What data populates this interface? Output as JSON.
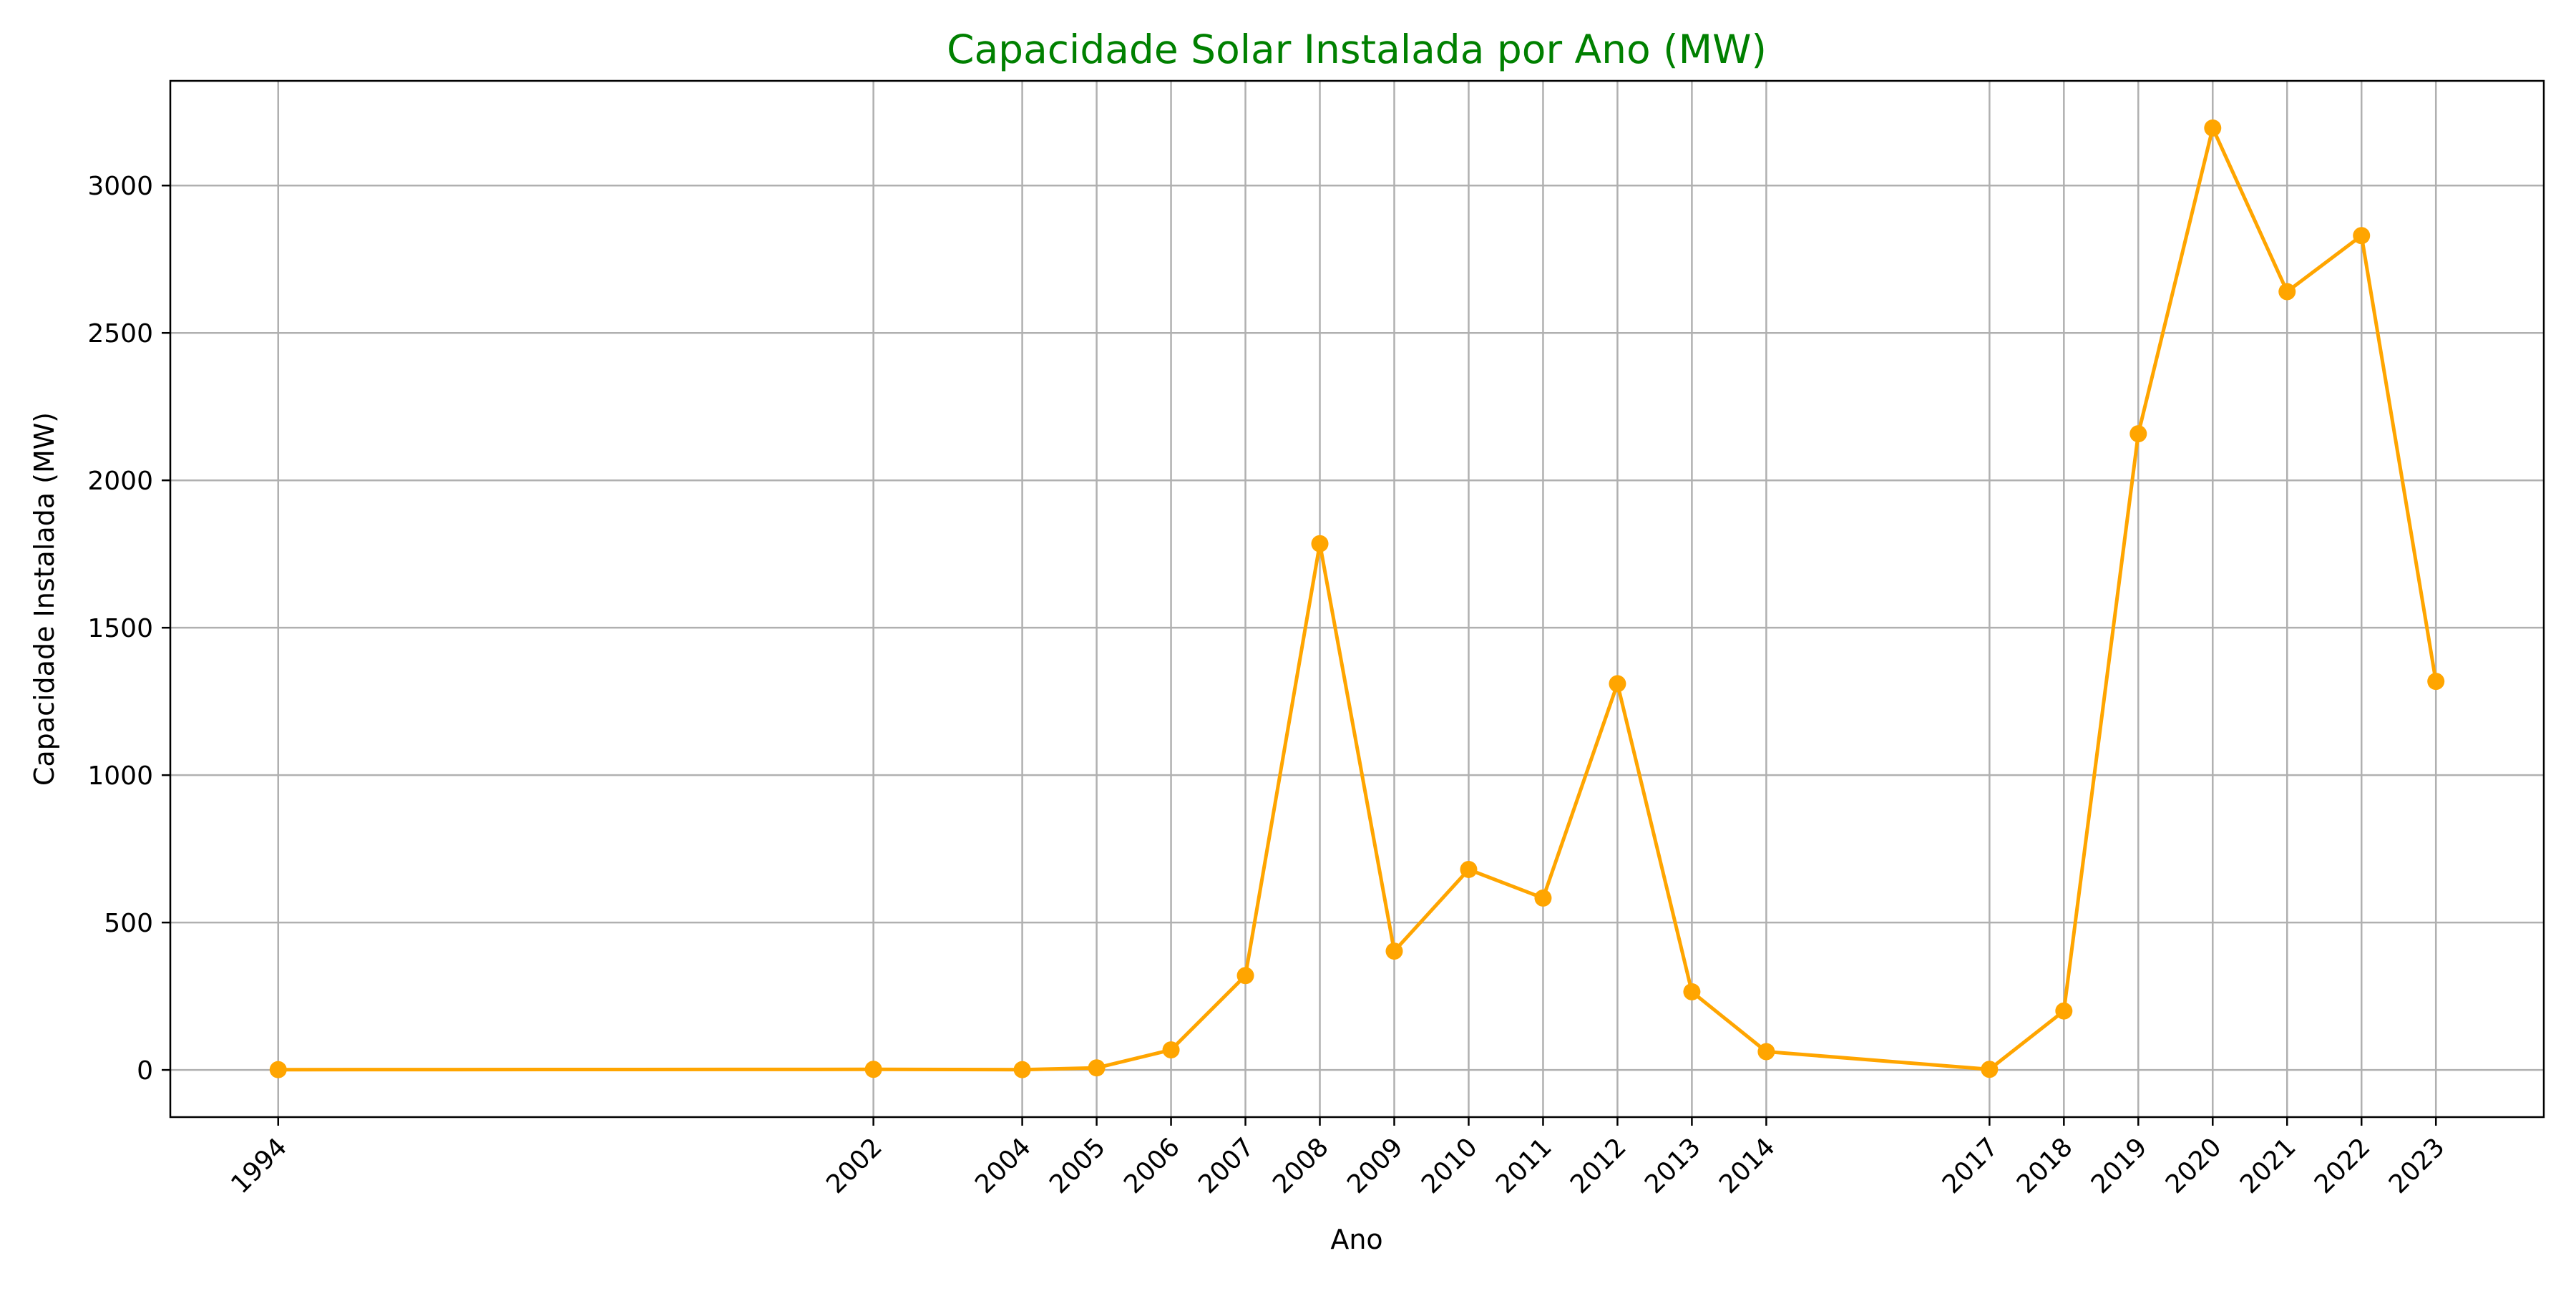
{
  "chart_data": {
    "type": "line",
    "title": "Capacidade Solar Instalada por Ano (MW)",
    "xlabel": "Ano",
    "ylabel": "Capacidade Instalada (MW)",
    "x": [
      1994,
      2002,
      2004,
      2005,
      2006,
      2007,
      2008,
      2009,
      2010,
      2011,
      2012,
      2013,
      2014,
      2017,
      2018,
      2019,
      2020,
      2021,
      2022,
      2023
    ],
    "x_tick_labels": [
      "1994",
      "2002",
      "2004",
      "2005",
      "2006",
      "2007",
      "2008",
      "2009",
      "2010",
      "2011",
      "2012",
      "2013",
      "2014",
      "2017",
      "2018",
      "2019",
      "2020",
      "2021",
      "2022",
      "2023"
    ],
    "series": [
      {
        "values": [
          1,
          2,
          1,
          7,
          68,
          320,
          1785,
          403,
          680,
          583,
          1310,
          265,
          62,
          2,
          200,
          2158,
          3195,
          2640,
          2830,
          1318
        ]
      }
    ],
    "y_ticks": [
      0,
      500,
      1000,
      1500,
      2000,
      2500,
      3000
    ],
    "y_tick_labels": [
      "0",
      "500",
      "1000",
      "1500",
      "2000",
      "2500",
      "3000"
    ],
    "xlim": [
      1992.55,
      2024.45
    ],
    "ylim": [
      -160,
      3355
    ],
    "grid": true,
    "legend": "none",
    "colors": {
      "line": "#FFA500",
      "title": "#008000",
      "grid": "#B0B0B0",
      "axis": "#000000"
    }
  }
}
